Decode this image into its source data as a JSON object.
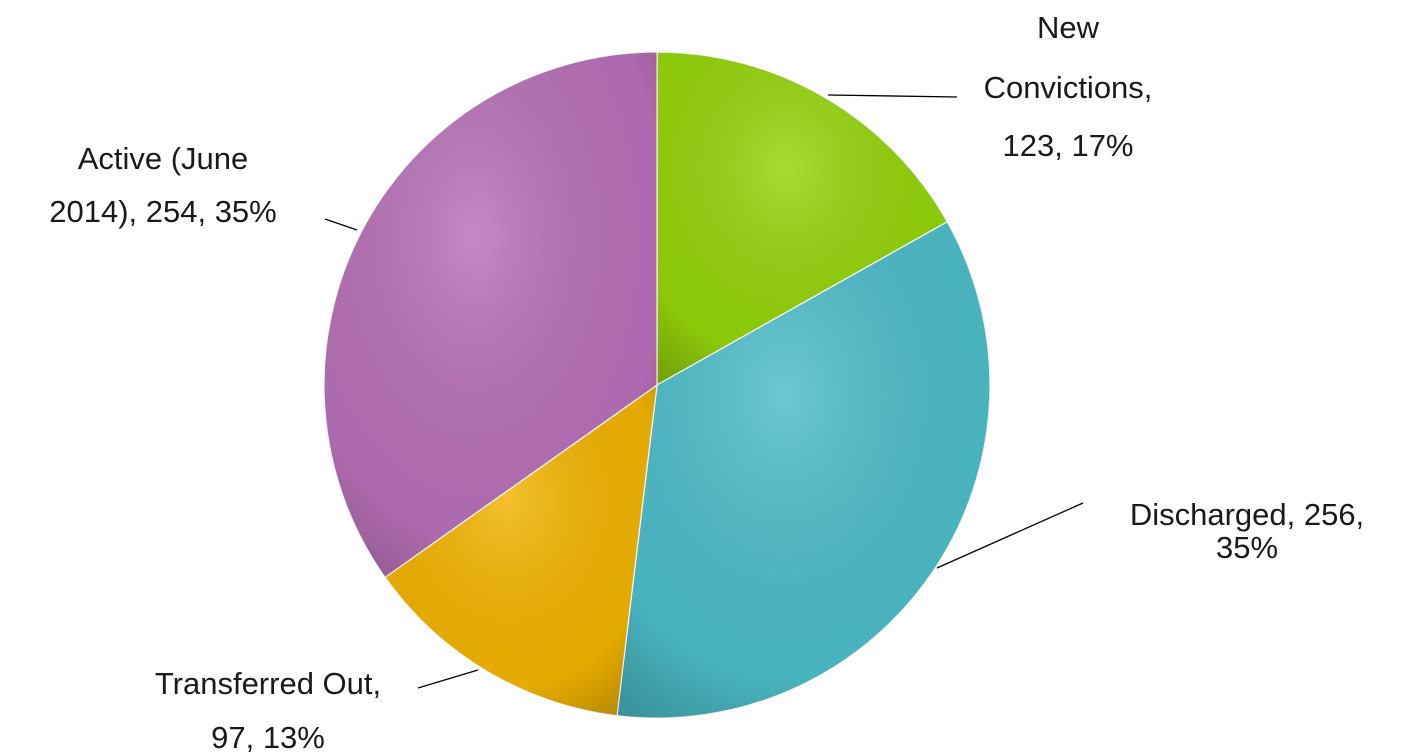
{
  "chart_data": {
    "type": "pie",
    "values": [
      123,
      256,
      97,
      254
    ],
    "labels": [
      [
        "New",
        "Convictions,",
        "123, 17%"
      ],
      [
        "Discharged, 256,",
        "35%"
      ],
      [
        "Transferred Out,",
        "97, 13%"
      ],
      [
        "Active (June",
        "2014), 254, 35%"
      ]
    ],
    "colors": [
      "#94d40a",
      "#4cbdc9",
      "#f2b400",
      "#b870b8"
    ]
  }
}
